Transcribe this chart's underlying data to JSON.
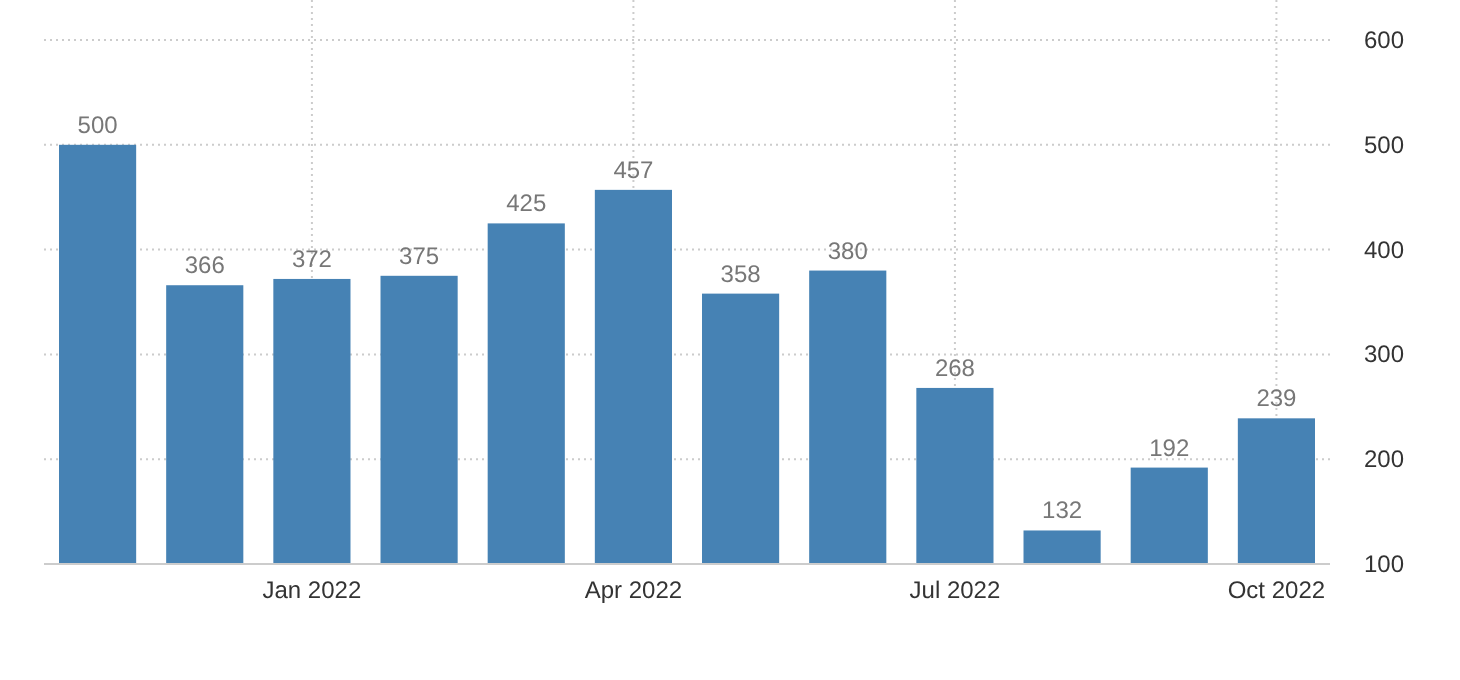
{
  "chart_data": {
    "type": "bar",
    "categories": [
      null,
      null,
      "Jan 2022",
      null,
      null,
      "Apr 2022",
      null,
      null,
      "Jul 2022",
      null,
      null,
      "Oct 2022"
    ],
    "values": [
      500,
      366,
      372,
      375,
      425,
      457,
      358,
      380,
      268,
      132,
      192,
      239
    ],
    "color": "#4682b4",
    "ylim": [
      100,
      600
    ],
    "yticks": [
      100,
      200,
      300,
      400,
      500,
      600
    ],
    "grid": true,
    "data_labels": true
  }
}
